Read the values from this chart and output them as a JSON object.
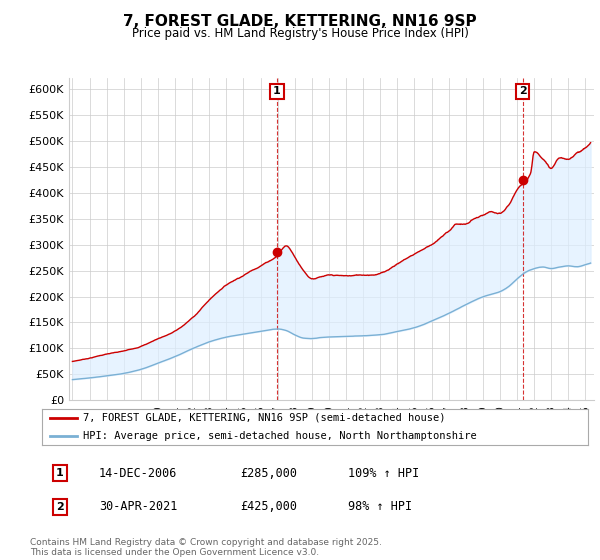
{
  "title": "7, FOREST GLADE, KETTERING, NN16 9SP",
  "subtitle": "Price paid vs. HM Land Registry's House Price Index (HPI)",
  "ylabel_ticks": [
    "£0",
    "£50K",
    "£100K",
    "£150K",
    "£200K",
    "£250K",
    "£300K",
    "£350K",
    "£400K",
    "£450K",
    "£500K",
    "£550K",
    "£600K"
  ],
  "ytick_values": [
    0,
    50000,
    100000,
    150000,
    200000,
    250000,
    300000,
    350000,
    400000,
    450000,
    500000,
    550000,
    600000
  ],
  "ylim": [
    0,
    620000
  ],
  "xlim_start": 1994.8,
  "xlim_end": 2025.5,
  "red_color": "#cc0000",
  "blue_color": "#7ab0d4",
  "fill_color": "#ddeeff",
  "background_color": "#ffffff",
  "grid_color": "#cccccc",
  "sale1_x": 2006.96,
  "sale1_y": 285000,
  "sale2_x": 2021.33,
  "sale2_y": 425000,
  "legend_line1": "7, FOREST GLADE, KETTERING, NN16 9SP (semi-detached house)",
  "legend_line2": "HPI: Average price, semi-detached house, North Northamptonshire",
  "table_row1": [
    "1",
    "14-DEC-2006",
    "£285,000",
    "109% ↑ HPI"
  ],
  "table_row2": [
    "2",
    "30-APR-2021",
    "£425,000",
    "98% ↑ HPI"
  ],
  "footnote": "Contains HM Land Registry data © Crown copyright and database right 2025.\nThis data is licensed under the Open Government Licence v3.0.",
  "red_keypoints_x": [
    1995.0,
    1996.0,
    1997.0,
    1998.0,
    1999.0,
    2000.0,
    2001.0,
    2002.0,
    2003.0,
    2004.0,
    2005.0,
    2006.0,
    2006.96,
    2007.5,
    2008.0,
    2008.5,
    2009.0,
    2009.5,
    2010.0,
    2011.0,
    2012.0,
    2013.0,
    2014.0,
    2015.0,
    2016.0,
    2017.0,
    2017.5,
    2018.0,
    2018.5,
    2019.0,
    2019.5,
    2020.0,
    2020.5,
    2021.0,
    2021.33,
    2021.8,
    2022.0,
    2022.5,
    2023.0,
    2023.5,
    2024.0,
    2024.5,
    2025.0,
    2025.3
  ],
  "red_keypoints_y": [
    75000,
    82000,
    90000,
    95000,
    105000,
    120000,
    135000,
    160000,
    195000,
    225000,
    245000,
    265000,
    285000,
    305000,
    285000,
    260000,
    245000,
    248000,
    250000,
    248000,
    250000,
    255000,
    275000,
    295000,
    315000,
    340000,
    355000,
    355000,
    365000,
    370000,
    375000,
    370000,
    385000,
    415000,
    425000,
    450000,
    490000,
    480000,
    460000,
    480000,
    475000,
    490000,
    500000,
    510000
  ],
  "blue_keypoints_x": [
    1995.0,
    1996.0,
    1997.0,
    1998.0,
    1999.0,
    2000.0,
    2001.0,
    2002.0,
    2003.0,
    2004.0,
    2005.0,
    2006.0,
    2007.0,
    2007.5,
    2008.0,
    2008.5,
    2009.0,
    2009.5,
    2010.0,
    2011.0,
    2012.0,
    2013.0,
    2014.0,
    2015.0,
    2016.0,
    2017.0,
    2018.0,
    2019.0,
    2019.5,
    2020.0,
    2020.5,
    2021.0,
    2021.5,
    2022.0,
    2022.5,
    2023.0,
    2023.5,
    2024.0,
    2024.5,
    2025.0,
    2025.3
  ],
  "blue_keypoints_y": [
    40000,
    43000,
    47000,
    52000,
    60000,
    72000,
    85000,
    100000,
    113000,
    122000,
    128000,
    133000,
    138000,
    135000,
    127000,
    121000,
    120000,
    122000,
    123000,
    124000,
    125000,
    127000,
    133000,
    140000,
    153000,
    168000,
    185000,
    200000,
    205000,
    210000,
    220000,
    235000,
    248000,
    255000,
    258000,
    255000,
    258000,
    260000,
    258000,
    262000,
    265000
  ]
}
